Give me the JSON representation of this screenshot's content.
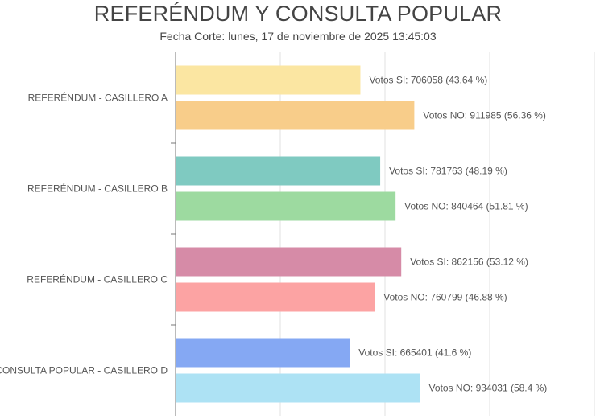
{
  "chart_data": {
    "type": "bar",
    "orientation": "horizontal",
    "title": "REFERÉNDUM Y CONSULTA POPULAR",
    "subtitle": "Fecha Corte: lunes, 17 de noviembre de 2025 13:45:03",
    "categories": [
      "REFERÉNDUM - CASILLERO A",
      "REFERÉNDUM - CASILLERO B",
      "REFERÉNDUM - CASILLERO C",
      "CONSULTA POPULAR - CASILLERO D"
    ],
    "bars": [
      [
        {
          "value": 706058,
          "label": "Votos SI: 706058 (43.64 %)",
          "color": "#fbe6a2"
        },
        {
          "value": 911985,
          "label": "Votos NO: 911985 (56.36 %)",
          "color": "#f8cd8a"
        }
      ],
      [
        {
          "value": 781763,
          "label": "Votos SI: 781763 (48.19 %)",
          "color": "#7fcac1"
        },
        {
          "value": 840464,
          "label": "Votos NO: 840464 (51.81 %)",
          "color": "#9ddaa0"
        }
      ],
      [
        {
          "value": 862156,
          "label": "Votos SI: 862156 (53.12 %)",
          "color": "#d68ba7"
        },
        {
          "value": 760799,
          "label": "Votos NO: 760799 (46.88 %)",
          "color": "#fca3a3"
        }
      ],
      [
        {
          "value": 665401,
          "label": "Votos SI: 665401 (41.6 %)",
          "color": "#85a8f3"
        },
        {
          "value": 934031,
          "label": "Votos NO: 934031 (58.4 %)",
          "color": "#ade2f4"
        }
      ]
    ],
    "xlim": [
      0,
      1600000
    ],
    "grid": true,
    "legend": "none"
  }
}
